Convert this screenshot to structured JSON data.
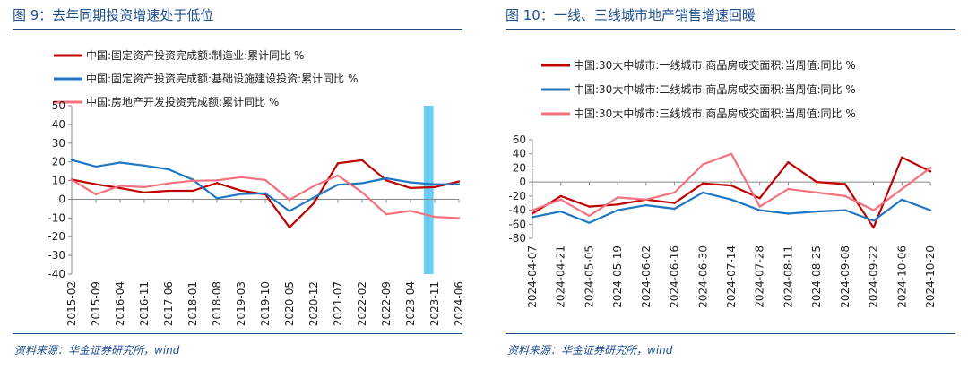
{
  "source_text": "资料来源：华金证券研究所，wind",
  "chart_data": [
    {
      "type": "line",
      "title": "图 9：去年同期投资增速处于低位",
      "x": [
        "2015-02",
        "2015-09",
        "2016-04",
        "2016-11",
        "2017-06",
        "2018-01",
        "2018-08",
        "2019-03",
        "2019-10",
        "2020-05",
        "2020-12",
        "2021-07",
        "2022-02",
        "2022-09",
        "2023-04",
        "2023-11",
        "2024-06"
      ],
      "tick_labels": [
        "2015-02",
        "2015-09",
        "2016-04",
        "2016-11",
        "2017-06",
        "2018-01",
        "2018-08",
        "2019-03",
        "2019-10",
        "2020-05",
        "2020-12",
        "2021-07",
        "2022-02",
        "2022-09",
        "2023-04",
        "2023-11",
        "2024-06"
      ],
      "ylim": [
        -40,
        50
      ],
      "yticks": [
        -40,
        -30,
        -20,
        -10,
        0,
        10,
        20,
        30,
        40,
        50
      ],
      "highlight": {
        "x_start": "2023-09",
        "x_end": "2023-11",
        "color": "#5bc8f5"
      },
      "series": [
        {
          "name": "中国:固定资产投资完成额:制造业:累计同比 %",
          "color": "#c00000",
          "values": [
            10.5,
            8.0,
            6.0,
            3.6,
            4.5,
            4.5,
            8.7,
            4.6,
            2.6,
            -15.0,
            -2.2,
            19.2,
            20.9,
            10.1,
            6.0,
            6.5,
            9.5
          ]
        },
        {
          "name": "中国:固定资产投资完成额:基础设施建设投资:累计同比 %",
          "color": "#1f77c4",
          "values": [
            21.0,
            17.5,
            19.6,
            18.0,
            16.0,
            10.5,
            0.5,
            2.8,
            3.2,
            -6.3,
            0.9,
            7.8,
            8.6,
            11.2,
            9.0,
            8.0,
            8.0
          ]
        },
        {
          "name": "中国:房地产开发投资完成额:累计同比 %",
          "color": "#f4717f",
          "values": [
            10.4,
            2.6,
            7.2,
            6.5,
            8.5,
            9.9,
            10.1,
            11.8,
            10.3,
            -0.3,
            7.0,
            12.7,
            3.7,
            -8.0,
            -6.2,
            -9.4,
            -10.1
          ]
        }
      ]
    },
    {
      "type": "line",
      "title": "图 10：一线、三线城市地产销售增速回暖",
      "x": [
        "2024-04-07",
        "2024-04-21",
        "2024-05-05",
        "2024-05-19",
        "2024-06-02",
        "2024-06-16",
        "2024-06-30",
        "2024-07-14",
        "2024-07-28",
        "2024-08-11",
        "2024-08-25",
        "2024-09-08",
        "2024-09-22",
        "2024-10-06",
        "2024-10-20"
      ],
      "tick_labels": [
        "2024-04-07",
        "2024-04-21",
        "2024-05-05",
        "2024-05-19",
        "2024-06-02",
        "2024-06-16",
        "2024-06-30",
        "2024-07-14",
        "2024-07-28",
        "2024-08-11",
        "2024-08-25",
        "2024-09-08",
        "2024-09-22",
        "2024-10-06",
        "2024-10-20"
      ],
      "ylim": [
        -80,
        60
      ],
      "yticks": [
        -80,
        -60,
        -40,
        -20,
        0,
        20,
        40,
        60
      ],
      "series": [
        {
          "name": "中国:30大中城市:一线城市:商品房成交面积:当周值:同比 %",
          "color": "#c00000",
          "values": [
            -45,
            -20,
            -35,
            -32,
            -25,
            -30,
            -2,
            -5,
            -23,
            28,
            0,
            -3,
            -65,
            35,
            15
          ]
        },
        {
          "name": "中国:30大中城市:二线城市:商品房成交面积:当周值:同比 %",
          "color": "#1f77c4",
          "values": [
            -50,
            -42,
            -58,
            -40,
            -33,
            -38,
            -15,
            -25,
            -40,
            -45,
            -42,
            -40,
            -55,
            -25,
            -40
          ]
        },
        {
          "name": "中国:30大中城市:三线城市:商品房成交面积:当周值:同比 %",
          "color": "#f4717f",
          "values": [
            -40,
            -25,
            -48,
            -22,
            -25,
            -15,
            25,
            40,
            -35,
            -10,
            -15,
            -20,
            -40,
            -10,
            20
          ]
        }
      ]
    }
  ]
}
